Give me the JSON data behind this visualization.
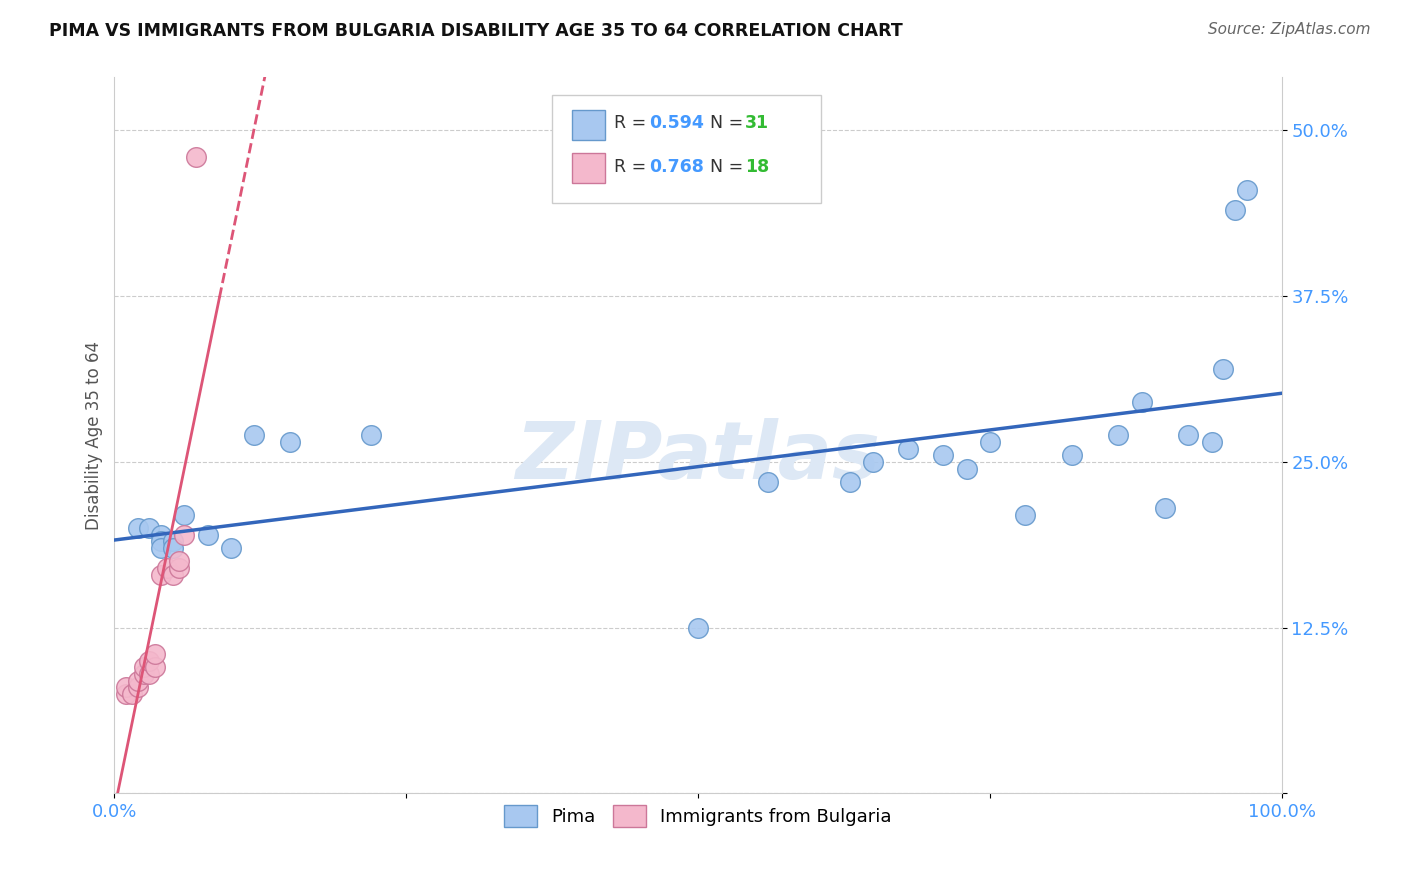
{
  "title": "PIMA VS IMMIGRANTS FROM BULGARIA DISABILITY AGE 35 TO 64 CORRELATION CHART",
  "source": "Source: ZipAtlas.com",
  "ylabel_label": "Disability Age 35 to 64",
  "xlim": [
    0.0,
    1.0
  ],
  "ylim": [
    0.0,
    0.54
  ],
  "pima_color": "#a8c8f0",
  "pima_edge_color": "#6699cc",
  "bulgaria_color": "#f4b8cc",
  "bulgaria_edge_color": "#cc7799",
  "pima_R": "0.594",
  "pima_N": "31",
  "bulgaria_R": "0.768",
  "bulgaria_N": "18",
  "legend_R_color": "#4499ff",
  "legend_N_color": "#33bb33",
  "trend_blue_color": "#3366bb",
  "trend_pink_color": "#dd5577",
  "watermark": "ZIPatlas",
  "pima_x": [
    0.02,
    0.03,
    0.04,
    0.04,
    0.04,
    0.05,
    0.05,
    0.06,
    0.08,
    0.1,
    0.12,
    0.15,
    0.22,
    0.5,
    0.56,
    0.63,
    0.65,
    0.68,
    0.71,
    0.73,
    0.75,
    0.78,
    0.82,
    0.86,
    0.88,
    0.9,
    0.92,
    0.94,
    0.95,
    0.96,
    0.97
  ],
  "pima_y": [
    0.2,
    0.2,
    0.195,
    0.19,
    0.185,
    0.19,
    0.185,
    0.21,
    0.195,
    0.185,
    0.27,
    0.265,
    0.27,
    0.125,
    0.235,
    0.235,
    0.25,
    0.26,
    0.255,
    0.245,
    0.265,
    0.21,
    0.255,
    0.27,
    0.295,
    0.215,
    0.27,
    0.265,
    0.32,
    0.44,
    0.455
  ],
  "bulgaria_x": [
    0.01,
    0.01,
    0.015,
    0.02,
    0.02,
    0.025,
    0.025,
    0.03,
    0.03,
    0.035,
    0.035,
    0.04,
    0.045,
    0.05,
    0.055,
    0.055,
    0.06,
    0.07
  ],
  "bulgaria_y": [
    0.075,
    0.08,
    0.075,
    0.08,
    0.085,
    0.09,
    0.095,
    0.09,
    0.1,
    0.095,
    0.105,
    0.165,
    0.17,
    0.165,
    0.17,
    0.175,
    0.195,
    0.48
  ]
}
